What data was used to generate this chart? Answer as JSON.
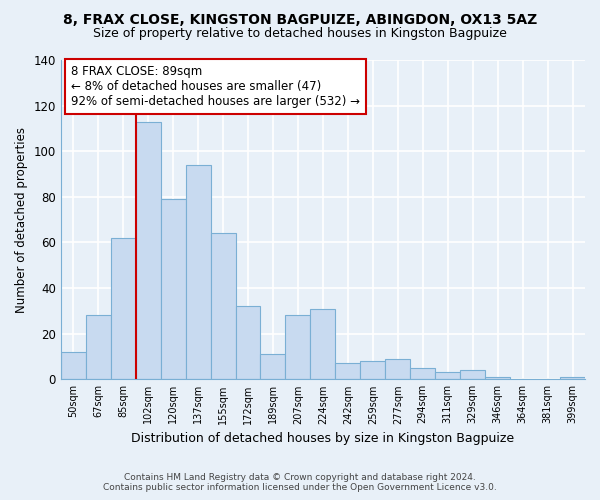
{
  "title": "8, FRAX CLOSE, KINGSTON BAGPUIZE, ABINGDON, OX13 5AZ",
  "subtitle": "Size of property relative to detached houses in Kingston Bagpuize",
  "bar_labels": [
    "50sqm",
    "67sqm",
    "85sqm",
    "102sqm",
    "120sqm",
    "137sqm",
    "155sqm",
    "172sqm",
    "189sqm",
    "207sqm",
    "224sqm",
    "242sqm",
    "259sqm",
    "277sqm",
    "294sqm",
    "311sqm",
    "329sqm",
    "346sqm",
    "364sqm",
    "381sqm",
    "399sqm"
  ],
  "bar_values": [
    12,
    28,
    62,
    113,
    79,
    94,
    64,
    32,
    11,
    28,
    31,
    7,
    8,
    9,
    5,
    3,
    4,
    1,
    0,
    0,
    1
  ],
  "bar_color": "#c8daf0",
  "bar_edge_color": "#7aafd4",
  "vline_index": 3,
  "vline_color": "#cc0000",
  "ylim": [
    0,
    140
  ],
  "yticks": [
    0,
    20,
    40,
    60,
    80,
    100,
    120,
    140
  ],
  "ylabel": "Number of detached properties",
  "xlabel": "Distribution of detached houses by size in Kingston Bagpuize",
  "annotation_title": "8 FRAX CLOSE: 89sqm",
  "annotation_line1": "← 8% of detached houses are smaller (47)",
  "annotation_line2": "92% of semi-detached houses are larger (532) →",
  "annotation_box_facecolor": "#ffffff",
  "annotation_box_edgecolor": "#cc0000",
  "footer1": "Contains HM Land Registry data © Crown copyright and database right 2024.",
  "footer2": "Contains public sector information licensed under the Open Government Licence v3.0.",
  "background_color": "#e8f0f8",
  "plot_background_color": "#e8f0f8",
  "grid_color": "#ffffff",
  "spine_color": "#7aafd4"
}
